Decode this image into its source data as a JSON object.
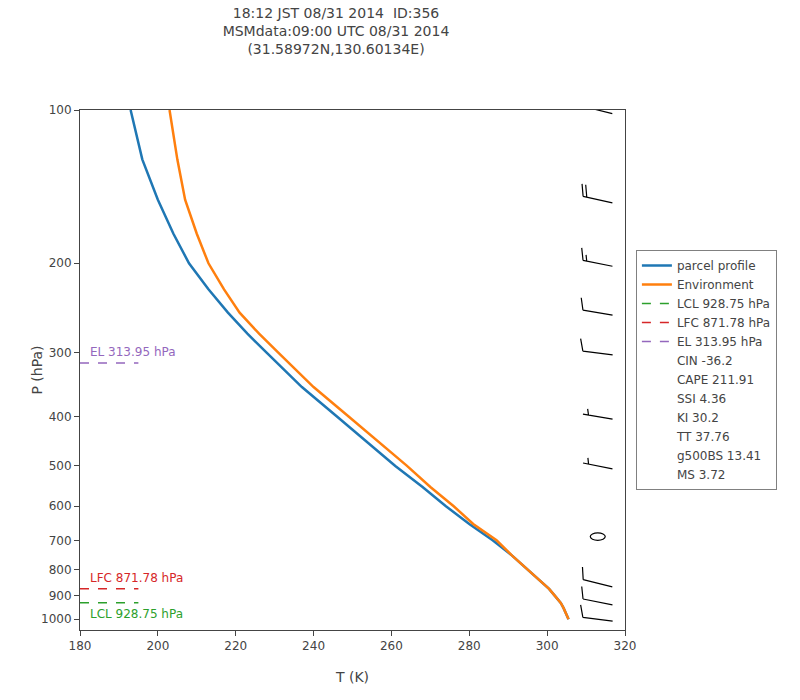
{
  "chart_data": {
    "type": "line",
    "title": "18:12 JST 08/31 2014  ID:356\nMSMdata:09:00 UTC 08/31 2014\n(31.58972N,130.60134E)",
    "xlabel": "T (K)",
    "ylabel": "P (hPa)",
    "xlim": [
      180,
      320
    ],
    "ylim": [
      1050,
      100
    ],
    "xticks": [
      180,
      200,
      220,
      240,
      260,
      280,
      300,
      320
    ],
    "yticks": [
      100,
      200,
      300,
      400,
      500,
      600,
      700,
      800,
      900,
      1000
    ],
    "log": "y",
    "grid": false,
    "legend": "right",
    "series": [
      {
        "name": "parcel profile",
        "color": "#1f77b4",
        "x": [
          193,
          196,
          200,
          204,
          208,
          213,
          218,
          223,
          228,
          237,
          246,
          254,
          261,
          268,
          274,
          280,
          286,
          291,
          295,
          299,
          300.5,
          302,
          303.5,
          304.2,
          304.8,
          305.5
        ],
        "values": [
          100,
          125,
          150,
          175,
          200,
          225,
          250,
          275,
          300,
          350,
          400,
          450,
          500,
          550,
          600,
          650,
          700,
          750,
          800,
          850,
          871.78,
          900,
          928.75,
          950,
          975,
          1000
        ]
      },
      {
        "name": "Environment",
        "color": "#ff7f0e",
        "x": [
          203,
          205,
          207,
          210,
          213,
          217,
          221,
          226,
          231,
          240,
          249,
          257,
          264,
          270,
          276,
          281,
          287,
          291,
          295,
          299,
          300.5,
          302,
          303.5,
          304.2,
          304.8,
          305.5
        ],
        "values": [
          100,
          125,
          150,
          175,
          200,
          225,
          250,
          275,
          300,
          350,
          400,
          450,
          500,
          550,
          600,
          650,
          700,
          750,
          800,
          850,
          871.78,
          900,
          928.75,
          950,
          975,
          1000
        ]
      }
    ],
    "levels": [
      {
        "name": "LCL 928.75 hPa",
        "label": "LCL 928.75 hPa",
        "color": "#2ca02c",
        "line_style": "dashed",
        "value": 928.75,
        "x": [
          180,
          195
        ]
      },
      {
        "name": "LFC 871.78 hPa",
        "label": "LFC 871.78 hPa",
        "color": "#d62728",
        "line_style": "dashed",
        "value": 871.78,
        "x": [
          180,
          195
        ]
      },
      {
        "name": "EL 313.95 hPa",
        "label": "EL 313.95 hPa",
        "color": "#9467bd",
        "line_style": "dashed",
        "value": 313.95,
        "x": [
          180,
          195
        ]
      }
    ],
    "notes": [
      "CIN -36.2",
      "CAPE 211.91",
      "SSI 4.36",
      "KI 30.2",
      "TT 37.76",
      "g500BS 13.41",
      "MS 3.72"
    ],
    "barbs": {
      "x": 313,
      "values": [
        100,
        150,
        200,
        250,
        300,
        400,
        500,
        700,
        850,
        925,
        1000
      ],
      "u": [
        20,
        18,
        15,
        12,
        8,
        6,
        5,
        0,
        8,
        10,
        8
      ],
      "v": [
        -5,
        -4,
        -3,
        -2,
        -1,
        -1,
        -1,
        0,
        -2,
        -2,
        -1
      ],
      "barb_increments": {
        "half": 5,
        "full": 10,
        "flag": 50
      }
    }
  }
}
